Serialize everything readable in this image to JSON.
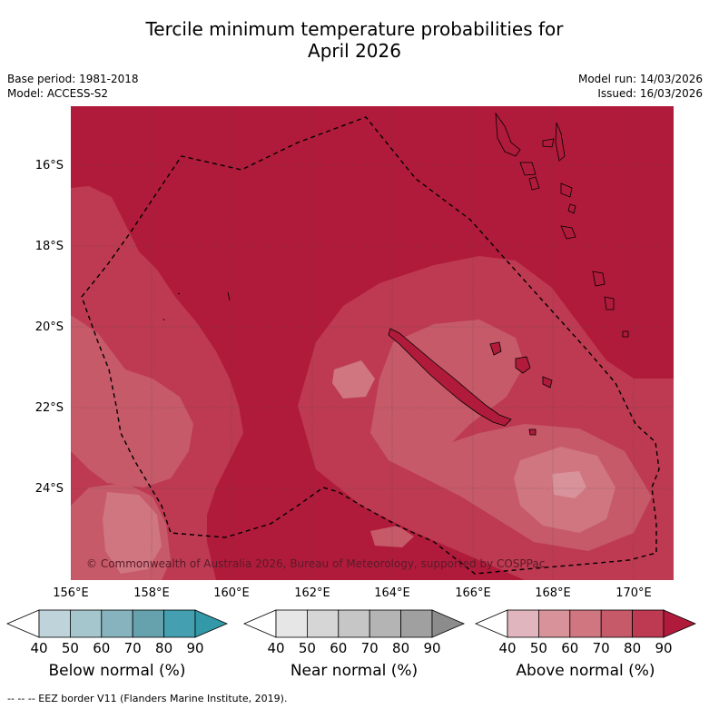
{
  "title_line1": "Tercile minimum temperature probabilities for",
  "title_line2": "April 2026",
  "base_period": "Base period: 1981-2018",
  "model": "Model: ACCESS-S2",
  "model_run": "Model run: 14/03/2026",
  "issued": "Issued: 16/03/2026",
  "copyright": "© Commonwealth of Australia 2026, Bureau of Meteorology, supported by COSPPac",
  "footer": "--  --  -- EEZ border V11 (Flanders Marine Institute, 2019).",
  "lat_labels": [
    "16°S",
    "18°S",
    "20°S",
    "22°S",
    "24°S"
  ],
  "lon_labels": [
    "156°E",
    "158°E",
    "160°E",
    "162°E",
    "164°E",
    "166°E",
    "168°E",
    "170°E"
  ],
  "colorbars": [
    {
      "label": "Below normal (%)",
      "ticks": [
        "40",
        "50",
        "60",
        "70",
        "80",
        "90"
      ],
      "colors": [
        "#bfd3da",
        "#a5c6cc",
        "#86b3bd",
        "#66a2ae",
        "#44a0b0",
        "#3398a8"
      ]
    },
    {
      "label": "Near normal (%)",
      "ticks": [
        "40",
        "50",
        "60",
        "70",
        "80",
        "90"
      ],
      "colors": [
        "#e6e6e6",
        "#d6d6d6",
        "#c6c6c6",
        "#b4b4b4",
        "#a0a0a0",
        "#8c8c8c"
      ]
    },
    {
      "label": "Above normal (%)",
      "ticks": [
        "40",
        "50",
        "60",
        "70",
        "80",
        "90"
      ],
      "colors": [
        "#e0b5bd",
        "#d8929a",
        "#cf7680",
        "#c65a69",
        "#bd3a52",
        "#b11b3b"
      ]
    }
  ],
  "map_colors": {
    "p90": "#b11b3b",
    "p80": "#bd3a52",
    "p70": "#c65a69",
    "p60": "#cf7680",
    "p50": "#d8929a"
  }
}
